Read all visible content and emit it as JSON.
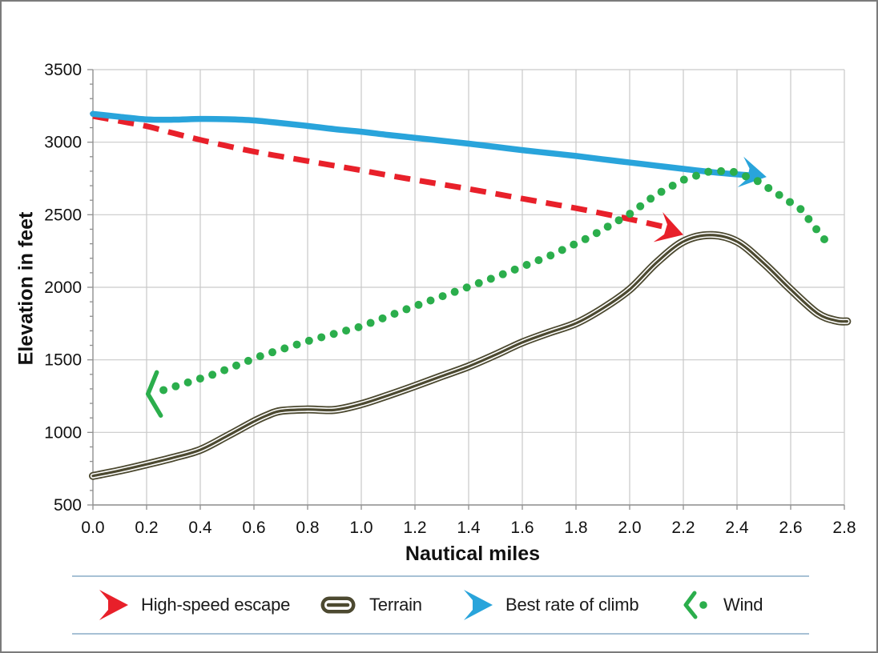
{
  "figure": {
    "background": "#ffffff",
    "border_color": "#7b7b7b",
    "gridline_color": "#c9c9c9",
    "axis_line_color": "#8f8f8f",
    "text_color": "#111111",
    "legend_divider_color": "#a7c1d5"
  },
  "chart_data": {
    "type": "line",
    "title": "",
    "xlabel": "Nautical miles",
    "ylabel": "Elevation in feet",
    "xlim": [
      0.0,
      2.8
    ],
    "ylim": [
      500,
      3500
    ],
    "x_tick_values": [
      0.0,
      0.2,
      0.4,
      0.6,
      0.8,
      1.0,
      1.2,
      1.4,
      1.6,
      1.8,
      2.0,
      2.2,
      2.4,
      2.6,
      2.8
    ],
    "x_ticks": [
      "0.0",
      "0.2",
      "0.4",
      "0.6",
      "0.8",
      "1.0",
      "1.2",
      "1.4",
      "1.6",
      "1.8",
      "2.0",
      "2.2",
      "2.4",
      "2.6",
      "2.8"
    ],
    "y_tick_values": [
      500,
      1000,
      1500,
      2000,
      2500,
      3000,
      3500
    ],
    "y_ticks": [
      "500",
      "1000",
      "1500",
      "2000",
      "2500",
      "3000",
      "3500"
    ],
    "y_minor_tick_step": 100,
    "grid": true,
    "legend_position": "bottom",
    "series": [
      {
        "name": "High-speed escape",
        "style": "dashed",
        "color": "#e8202a",
        "line_width": 7,
        "dash": [
          20,
          12
        ],
        "points": [
          [
            0.0,
            3180
          ],
          [
            0.1,
            3145
          ],
          [
            0.2,
            3110
          ],
          [
            0.3,
            3062
          ],
          [
            0.4,
            3016
          ],
          [
            0.5,
            2974
          ],
          [
            0.6,
            2935
          ],
          [
            0.7,
            2902
          ],
          [
            0.8,
            2870
          ],
          [
            0.9,
            2838
          ],
          [
            1.0,
            2806
          ],
          [
            1.1,
            2772
          ],
          [
            1.2,
            2740
          ],
          [
            1.3,
            2709
          ],
          [
            1.4,
            2678
          ],
          [
            1.5,
            2645
          ],
          [
            1.6,
            2611
          ],
          [
            1.7,
            2578
          ],
          [
            1.8,
            2545
          ],
          [
            1.9,
            2508
          ],
          [
            2.0,
            2470
          ],
          [
            2.12,
            2420
          ]
        ],
        "arrow_end": {
          "x": 2.2,
          "y": 2362,
          "angle": 17,
          "scale": 1.0
        }
      },
      {
        "name": "Terrain",
        "style": "triple",
        "color": "#4c4930",
        "outer_width": 10,
        "gap_width": 6.4,
        "core_width": 3.2,
        "points": [
          [
            0.0,
            700
          ],
          [
            0.1,
            737
          ],
          [
            0.2,
            780
          ],
          [
            0.3,
            826
          ],
          [
            0.4,
            880
          ],
          [
            0.5,
            975
          ],
          [
            0.6,
            1075
          ],
          [
            0.65,
            1118
          ],
          [
            0.7,
            1148
          ],
          [
            0.8,
            1158
          ],
          [
            0.9,
            1155
          ],
          [
            1.0,
            1195
          ],
          [
            1.1,
            1255
          ],
          [
            1.2,
            1320
          ],
          [
            1.3,
            1388
          ],
          [
            1.4,
            1455
          ],
          [
            1.5,
            1535
          ],
          [
            1.6,
            1620
          ],
          [
            1.7,
            1688
          ],
          [
            1.8,
            1752
          ],
          [
            1.9,
            1855
          ],
          [
            2.0,
            1985
          ],
          [
            2.1,
            2170
          ],
          [
            2.2,
            2315
          ],
          [
            2.3,
            2360
          ],
          [
            2.4,
            2315
          ],
          [
            2.5,
            2165
          ],
          [
            2.6,
            1985
          ],
          [
            2.7,
            1820
          ],
          [
            2.77,
            1770
          ],
          [
            2.81,
            1765
          ]
        ]
      },
      {
        "name": "Best rate of climb",
        "style": "solid",
        "color": "#29a4db",
        "line_width": 7.5,
        "points": [
          [
            0.0,
            3195
          ],
          [
            0.1,
            3175
          ],
          [
            0.2,
            3157
          ],
          [
            0.3,
            3155
          ],
          [
            0.4,
            3160
          ],
          [
            0.5,
            3158
          ],
          [
            0.6,
            3150
          ],
          [
            0.7,
            3132
          ],
          [
            0.8,
            3112
          ],
          [
            0.9,
            3090
          ],
          [
            1.0,
            3072
          ],
          [
            1.1,
            3050
          ],
          [
            1.2,
            3030
          ],
          [
            1.3,
            3010
          ],
          [
            1.4,
            2990
          ],
          [
            1.5,
            2968
          ],
          [
            1.6,
            2945
          ],
          [
            1.7,
            2925
          ],
          [
            1.8,
            2905
          ],
          [
            1.9,
            2882
          ],
          [
            2.0,
            2860
          ],
          [
            2.1,
            2838
          ],
          [
            2.2,
            2816
          ],
          [
            2.3,
            2795
          ],
          [
            2.4,
            2778
          ],
          [
            2.45,
            2772
          ]
        ],
        "arrow_end": {
          "x": 2.51,
          "y": 2760,
          "angle": 11,
          "scale": 1.0
        }
      },
      {
        "name": "Wind",
        "style": "dotted",
        "color": "#2bae4c",
        "dot_radius": 5,
        "dot_spacing": 16,
        "points": [
          [
            0.205,
            1265
          ],
          [
            0.26,
            1290
          ],
          [
            0.45,
            1400
          ],
          [
            0.63,
            1530
          ],
          [
            0.82,
            1640
          ],
          [
            1.0,
            1730
          ],
          [
            1.18,
            1857
          ],
          [
            1.35,
            1970
          ],
          [
            1.5,
            2070
          ],
          [
            1.7,
            2215
          ],
          [
            1.85,
            2345
          ],
          [
            2.0,
            2505
          ],
          [
            2.1,
            2640
          ],
          [
            2.2,
            2740
          ],
          [
            2.3,
            2800
          ],
          [
            2.38,
            2800
          ],
          [
            2.47,
            2740
          ],
          [
            2.55,
            2645
          ],
          [
            2.64,
            2535
          ],
          [
            2.7,
            2390
          ],
          [
            2.73,
            2320
          ]
        ],
        "arrow_start_chevron": {
          "x": 0.205,
          "y": 1265
        }
      }
    ]
  },
  "legend": {
    "items": [
      {
        "label": "High-speed escape",
        "marker": "red-right-arrow"
      },
      {
        "label": "Terrain",
        "marker": "terrain-pill"
      },
      {
        "label": "Best rate of climb",
        "marker": "blue-right-arrow"
      },
      {
        "label": "Wind",
        "marker": "green-left-chevron-dot"
      }
    ]
  }
}
